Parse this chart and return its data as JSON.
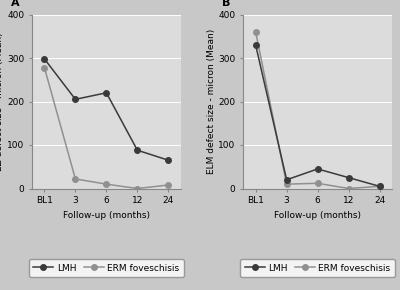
{
  "panel_A": {
    "label": "A",
    "ylabel": "EZ defect size - micron (Mean)",
    "xlabel": "Follow-up (months)",
    "xtick_labels": [
      "BL1",
      "3",
      "6",
      "12",
      "24"
    ],
    "x_positions": [
      0,
      1,
      2,
      3,
      4
    ],
    "lmh_y": [
      298,
      205,
      220,
      88,
      65
    ],
    "erm_y": [
      278,
      22,
      10,
      0,
      8
    ],
    "ylim": [
      0,
      400
    ],
    "yticks": [
      0,
      100,
      200,
      300,
      400
    ]
  },
  "panel_B": {
    "label": "B",
    "ylabel": "ELM defect size - micron (Mean)",
    "xlabel": "Follow-up (months)",
    "xtick_labels": [
      "BL1",
      "3",
      "6",
      "12",
      "24"
    ],
    "x_positions": [
      0,
      1,
      2,
      3,
      4
    ],
    "lmh_y": [
      330,
      20,
      45,
      25,
      5
    ],
    "erm_y": [
      360,
      10,
      12,
      0,
      5
    ],
    "ylim": [
      0,
      400
    ],
    "yticks": [
      0,
      100,
      200,
      300,
      400
    ]
  },
  "legend": {
    "lmh_label": "LMH",
    "erm_label": "ERM foveschisis"
  },
  "lmh_color": "#3a3a3a",
  "erm_color": "#909090",
  "bg_color": "#c8c8c8",
  "plot_bg": "#dcdcdc",
  "marker_lmh": "o",
  "marker_erm": "o",
  "linewidth": 1.1,
  "markersize": 4,
  "fontsize_label": 6.5,
  "fontsize_tick": 6.5,
  "fontsize_legend": 6.5,
  "fontsize_panel": 8
}
